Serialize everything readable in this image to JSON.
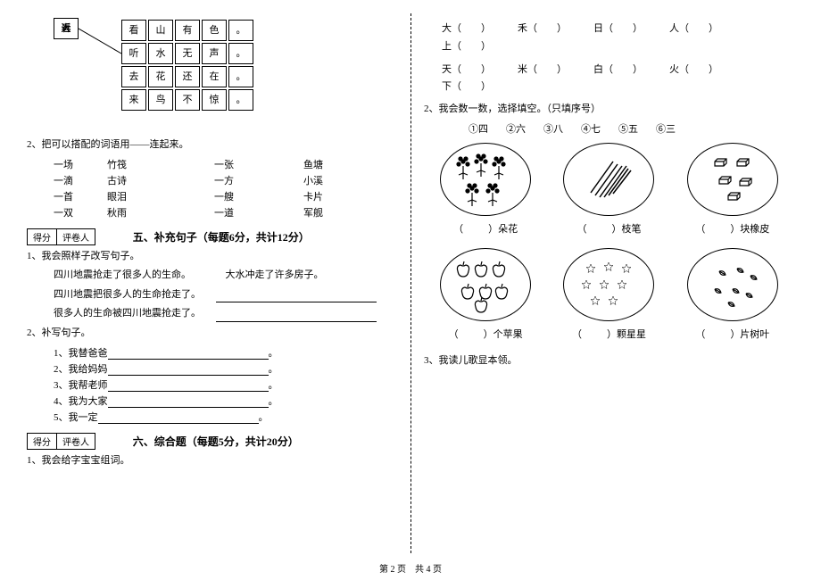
{
  "left": {
    "char_grid": {
      "singles": [
        "近",
        "春",
        "人",
        "远"
      ],
      "rows": [
        [
          "看",
          "山",
          "有",
          "色",
          "。"
        ],
        [
          "听",
          "水",
          "无",
          "声",
          "。"
        ],
        [
          "去",
          "花",
          "还",
          "在",
          "。"
        ],
        [
          "来",
          "鸟",
          "不",
          "惊",
          "。"
        ]
      ]
    },
    "q2_intro": "2、把可以搭配的词语用——连起来。",
    "match": [
      {
        "a": "一场",
        "b": "竹筏",
        "c": "一张",
        "d": "鱼塘"
      },
      {
        "a": "一滴",
        "b": "古诗",
        "c": "一方",
        "d": "小溪"
      },
      {
        "a": "一首",
        "b": "眼泪",
        "c": "一艘",
        "d": "卡片"
      },
      {
        "a": "一双",
        "b": "秋雨",
        "c": "一道",
        "d": "军舰"
      }
    ],
    "score_label1": "得分",
    "score_label2": "评卷人",
    "section5_title": "五、补充句子（每题6分，共计12分）",
    "s5_q1": "1、我会照样子改写句子。",
    "s5_lines": [
      "四川地震抢走了很多人的生命。　　　　大水冲走了许多房子。",
      "四川地震把很多人的生命抢走了。",
      "很多人的生命被四川地震抢走了。"
    ],
    "s5_q2": "2、补写句子。",
    "s5_fills": [
      "1、我替爸爸",
      "2、我给妈妈",
      "3、我帮老师",
      "4、我为大家",
      "5、我一定"
    ],
    "section6_title": "六、综合题（每题5分，共计20分）",
    "s6_q1": "1、我会给字宝宝组词。"
  },
  "right": {
    "char_pairs_row1": [
      {
        "l": "大",
        "r": ""
      },
      {
        "l": "禾",
        "r": ""
      },
      {
        "l": "日",
        "r": ""
      },
      {
        "l": "人",
        "r": ""
      },
      {
        "l": "上",
        "r": ""
      }
    ],
    "char_pairs_row2": [
      {
        "l": "天",
        "r": ""
      },
      {
        "l": "米",
        "r": ""
      },
      {
        "l": "白",
        "r": ""
      },
      {
        "l": "火",
        "r": ""
      },
      {
        "l": "下",
        "r": ""
      }
    ],
    "q2_intro": "2、我会数一数，选择填空。（只填序号）",
    "options": [
      "①四",
      "②六",
      "③八",
      "④七",
      "⑤五",
      "⑥三"
    ],
    "row1_labels": [
      "）朵花",
      "）枝笔",
      "）块橡皮"
    ],
    "row2_labels": [
      "）个苹果",
      "）颗星星",
      "）片树叶"
    ],
    "q3": "3、我读儿歌显本领。"
  },
  "footer": "第 2 页　共 4 页"
}
